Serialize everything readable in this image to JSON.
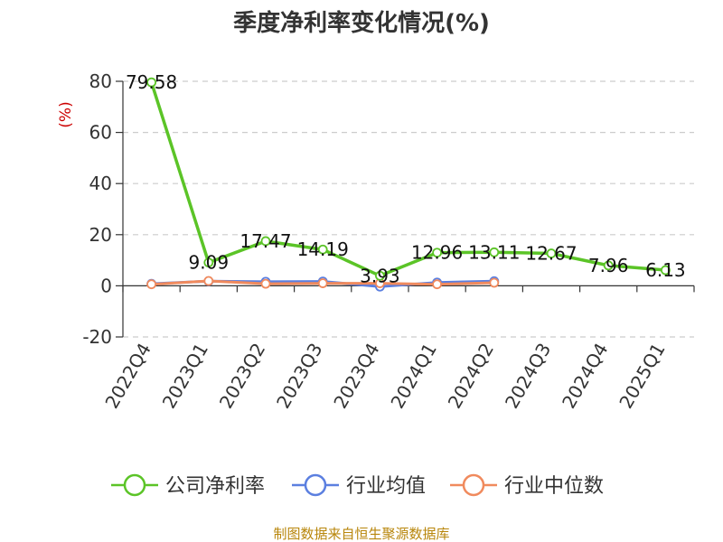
{
  "chart_data": {
    "type": "line",
    "title": "季度净利率变化情况(%)",
    "ylabel": "(%)",
    "categories": [
      "2022Q4",
      "2023Q1",
      "2023Q2",
      "2023Q3",
      "2023Q4",
      "2024Q1",
      "2024Q2",
      "2024Q3",
      "2024Q4",
      "2025Q1"
    ],
    "ylim": [
      -20,
      80
    ],
    "yticks": [
      80,
      60,
      40,
      20,
      0,
      -20
    ],
    "grid": true,
    "legend_position": "bottom",
    "series": [
      {
        "name": "公司净利率",
        "color": "#5bc427",
        "values": [
          79.58,
          9.09,
          17.47,
          14.19,
          3.93,
          12.96,
          13.11,
          12.67,
          7.96,
          6.13
        ],
        "labels": [
          "79.58",
          "9.09",
          "17.47",
          "14.19",
          "3.93",
          "12.96",
          "13.11",
          "12.67",
          "7.96",
          "6.13"
        ]
      },
      {
        "name": "行业均值",
        "color": "#5b7fe0",
        "values": [
          0.8,
          1.8,
          1.6,
          1.7,
          -0.3,
          1.3,
          1.8,
          null,
          null,
          null
        ]
      },
      {
        "name": "行业中位数",
        "color": "#f08a5d",
        "values": [
          0.6,
          1.9,
          0.8,
          1.0,
          1.0,
          0.6,
          1.2,
          null,
          null,
          null
        ]
      }
    ],
    "source": "制图数据来自恒生聚源数据库"
  }
}
